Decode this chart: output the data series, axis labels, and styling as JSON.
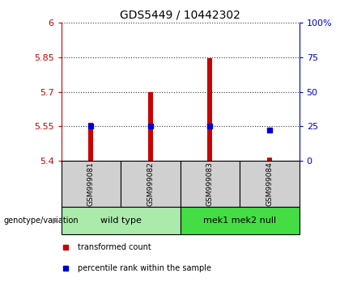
{
  "title": "GDS5449 / 10442302",
  "samples": [
    "GSM999081",
    "GSM999082",
    "GSM999083",
    "GSM999084"
  ],
  "bar_values": [
    5.565,
    5.7,
    5.845,
    5.415
  ],
  "percentile_values": [
    25,
    25,
    25,
    22
  ],
  "ylim_left": [
    5.4,
    6.0
  ],
  "ylim_right": [
    0,
    100
  ],
  "yticks_left": [
    5.4,
    5.55,
    5.7,
    5.85,
    6.0
  ],
  "yticks_left_labels": [
    "5.4",
    "5.55",
    "5.7",
    "5.85",
    "6"
  ],
  "yticks_right": [
    0,
    25,
    50,
    75,
    100
  ],
  "yticks_right_labels": [
    "0",
    "25",
    "50",
    "75",
    "100%"
  ],
  "bar_color": "#cc0000",
  "percentile_color": "#0000cc",
  "bar_base": 5.4,
  "bar_width": 0.08,
  "groups": [
    {
      "label": "wild type",
      "indices": [
        0,
        1
      ],
      "color": "#aaeaaa"
    },
    {
      "label": "mek1 mek2 null",
      "indices": [
        2,
        3
      ],
      "color": "#44dd44"
    }
  ],
  "group_label": "genotype/variation",
  "legend_items": [
    {
      "label": "transformed count",
      "color": "#cc0000"
    },
    {
      "label": "percentile rank within the sample",
      "color": "#0000cc"
    }
  ],
  "sample_box_color": "#d0d0d0",
  "plot_bg": "#ffffff",
  "spine_color": "#888888"
}
